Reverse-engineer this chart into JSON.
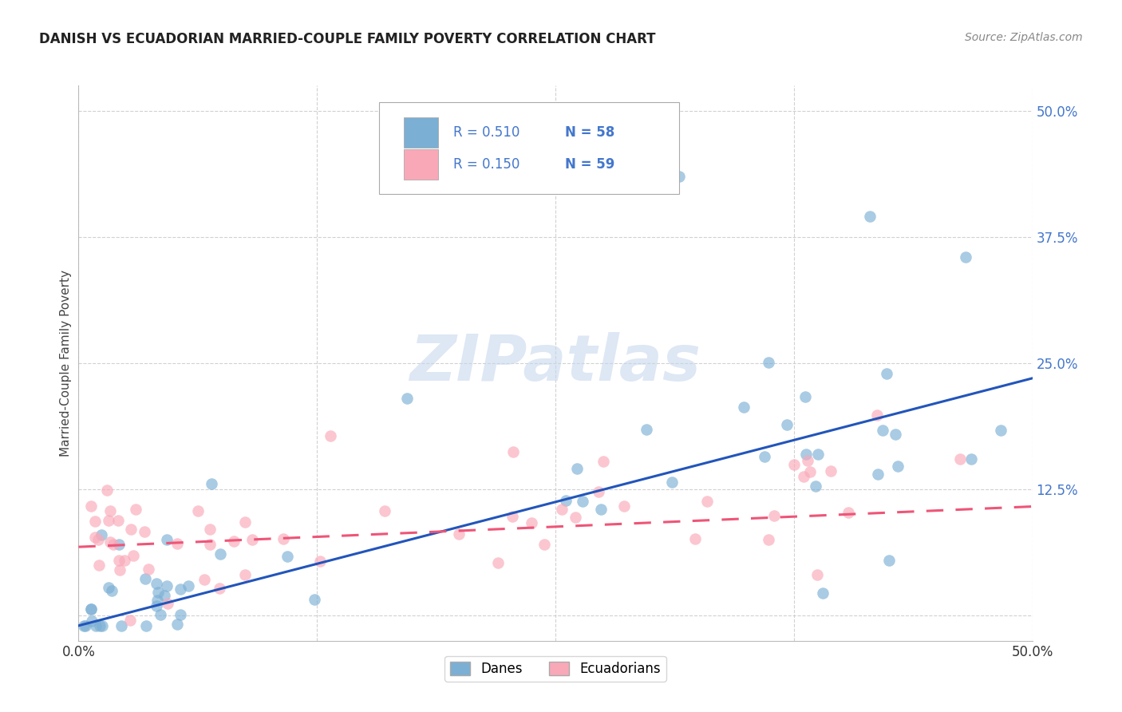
{
  "title": "DANISH VS ECUADORIAN MARRIED-COUPLE FAMILY POVERTY CORRELATION CHART",
  "source": "Source: ZipAtlas.com",
  "ylabel": "Married-Couple Family Poverty",
  "legend_labels": [
    "Danes",
    "Ecuadorians"
  ],
  "blue_scatter_color": "#7BAFD4",
  "pink_scatter_color": "#F9A8B8",
  "blue_line_color": "#2255BB",
  "pink_line_color": "#EE5577",
  "tick_label_color": "#4477CC",
  "watermark_color": "#C8D8ED",
  "background_color": "#ffffff",
  "grid_color": "#cccccc",
  "xmin": 0.0,
  "xmax": 0.5,
  "ymin": -0.025,
  "ymax": 0.525,
  "blue_R": 0.51,
  "blue_N": 58,
  "pink_R": 0.15,
  "pink_N": 59,
  "blue_line_start": -0.01,
  "blue_line_end": 0.235,
  "pink_line_start": 0.068,
  "pink_line_end": 0.108
}
